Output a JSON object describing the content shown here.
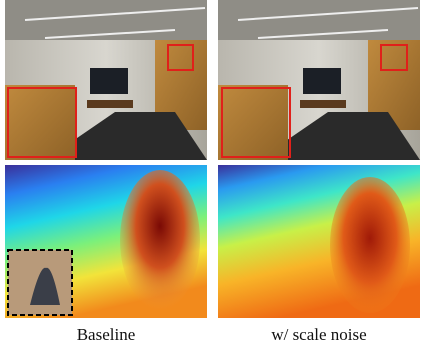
{
  "columns": [
    {
      "label": "Baseline"
    },
    {
      "label": "w/ scale noise"
    }
  ]
}
